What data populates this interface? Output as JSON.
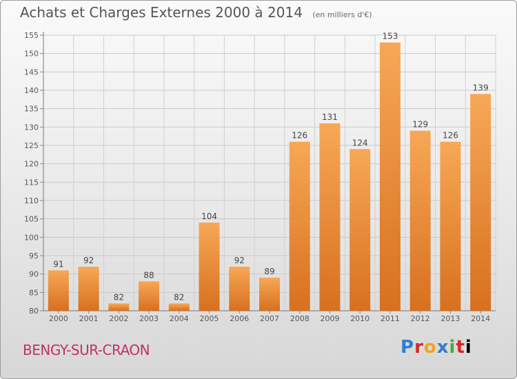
{
  "header": {
    "title": "Achats et Charges Externes 2000 à 2014",
    "subtitle": "(en milliers d'€)"
  },
  "footer": {
    "place": "BENGY-SUR-CRAON",
    "logo": "Proxiti",
    "logo_letters": [
      "P",
      "r",
      "o",
      "x",
      "i",
      "t",
      "i"
    ]
  },
  "colors": {
    "bar_top": "#f7a856",
    "bar_bottom": "#d7701f",
    "text": "#555555",
    "place": "#c0306a"
  },
  "chart_data": {
    "type": "bar",
    "title": "Achats et Charges Externes 2000 à 2014",
    "subtitle": "(en milliers d'€)",
    "categories": [
      "2000",
      "2001",
      "2002",
      "2003",
      "2004",
      "2005",
      "2006",
      "2007",
      "2008",
      "2009",
      "2010",
      "2011",
      "2012",
      "2013",
      "2014"
    ],
    "values": [
      91,
      92,
      82,
      88,
      82,
      104,
      92,
      89,
      126,
      131,
      124,
      153,
      129,
      126,
      139
    ],
    "ylim": [
      80,
      155
    ],
    "yticks": [
      80,
      85,
      90,
      95,
      100,
      105,
      110,
      115,
      120,
      125,
      130,
      135,
      140,
      145,
      150,
      155
    ],
    "grid": true,
    "xlabel": "",
    "ylabel": ""
  }
}
